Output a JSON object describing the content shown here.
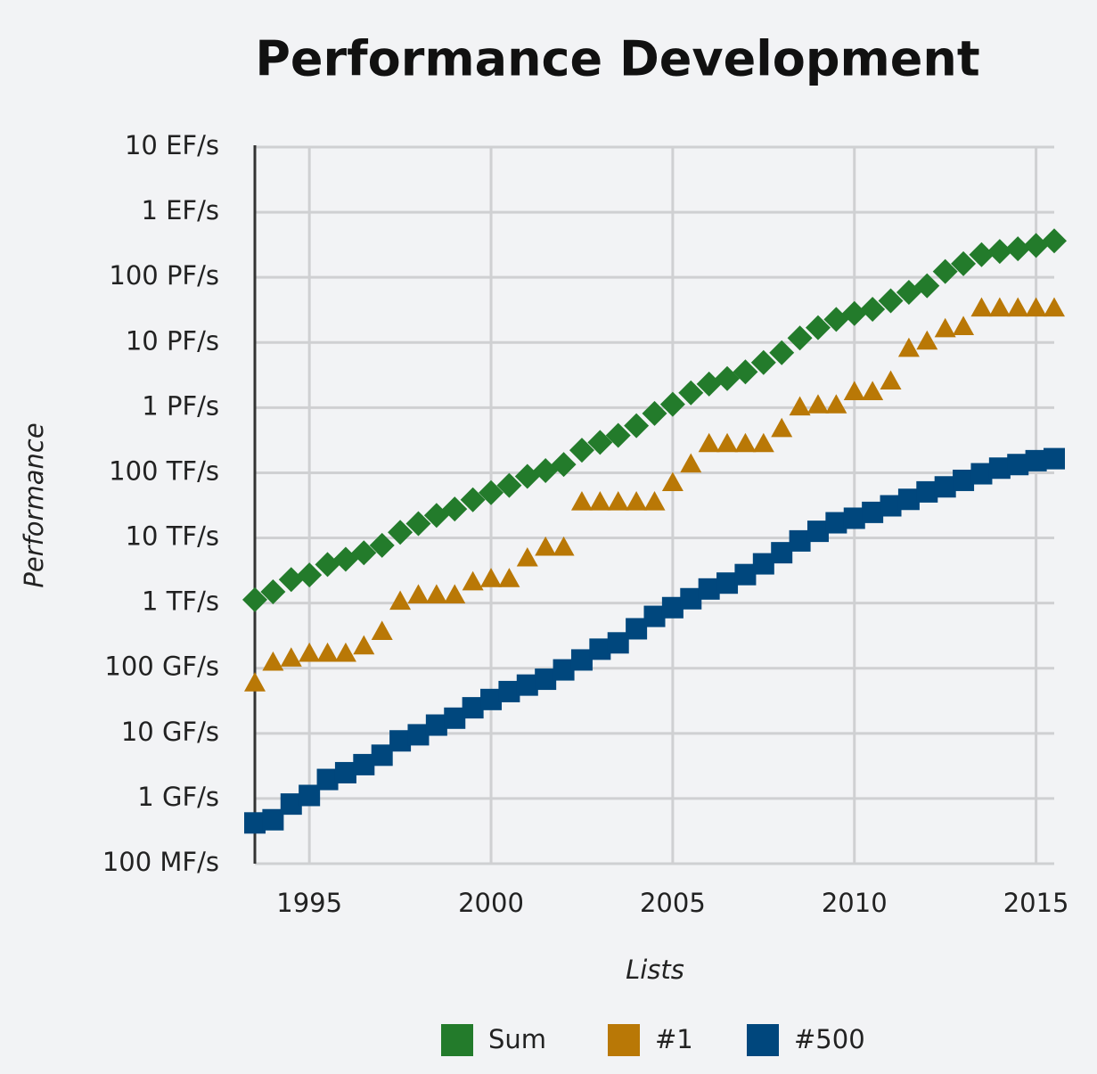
{
  "chart_data": {
    "type": "scatter",
    "title": "Performance Development",
    "x_label": "Lists",
    "y_label": "Performance",
    "log_y": true,
    "grid": true,
    "legend": "bottom",
    "x": [
      1993.5,
      1994,
      1994.5,
      1995,
      1995.5,
      1996,
      1996.5,
      1997,
      1997.5,
      1998,
      1998.5,
      1999,
      1999.5,
      2000,
      2000.5,
      2001,
      2001.5,
      2002,
      2002.5,
      2003,
      2003.5,
      2004,
      2004.5,
      2005,
      2005.5,
      2006,
      2006.5,
      2007,
      2007.5,
      2008,
      2008.5,
      2009,
      2009.5,
      2010,
      2010.5,
      2011,
      2011.5,
      2012,
      2012.5,
      2013,
      2013.5,
      2014,
      2014.5,
      2015,
      2015.5
    ],
    "xlim": [
      1993.5,
      2015.5
    ],
    "xticks": [
      1995,
      2000,
      2005,
      2010,
      2015
    ],
    "ylim": [
      0.1,
      10000000000
    ],
    "yticks": [
      {
        "value": 0.1,
        "label": "100 MF/s"
      },
      {
        "value": 1,
        "label": "1 GF/s"
      },
      {
        "value": 10,
        "label": "10 GF/s"
      },
      {
        "value": 100,
        "label": "100 GF/s"
      },
      {
        "value": 1000,
        "label": "1 TF/s"
      },
      {
        "value": 10000,
        "label": "10 TF/s"
      },
      {
        "value": 100000,
        "label": "100 TF/s"
      },
      {
        "value": 1000000,
        "label": "1 PF/s"
      },
      {
        "value": 10000000,
        "label": "10 PF/s"
      },
      {
        "value": 100000000,
        "label": "100 PF/s"
      },
      {
        "value": 1000000000,
        "label": "1 EF/s"
      },
      {
        "value": 10000000000,
        "label": "10 EF/s"
      }
    ],
    "series": [
      {
        "name": "Sum",
        "color": "#237b2b",
        "marker": "diamond",
        "values": [
          1128,
          1490,
          2300,
          2700,
          3900,
          4700,
          5900,
          7700,
          12200,
          16600,
          22200,
          27800,
          38500,
          49500,
          64000,
          88000,
          108000,
          134000,
          222000,
          293000,
          375000,
          528000,
          813000,
          1127000,
          1690000,
          2300000,
          2790000,
          3540000,
          4920000,
          6970000,
          11700000,
          16900000,
          22600000,
          27900000,
          32400000,
          43700000,
          58900000,
          74200000,
          123000000,
          162000000,
          223000000,
          250000000,
          274000000,
          309000000,
          363000000
        ]
      },
      {
        "name": "#1",
        "color": "#b97806",
        "marker": "triangle",
        "values": [
          59.7,
          124,
          143.4,
          170,
          170,
          170,
          220.4,
          368.2,
          1068,
          1338,
          1338,
          1338,
          2121,
          2379,
          2379,
          4938,
          7226,
          7226,
          35860,
          35860,
          35860,
          35860,
          35860,
          70720,
          136800,
          280600,
          280600,
          280600,
          280600,
          478200,
          1026000,
          1105000,
          1105000,
          1759000,
          1759000,
          2566000,
          8162000,
          10510000,
          16320000,
          17590000,
          33860000,
          33860000,
          33860000,
          33860000,
          33860000
        ]
      },
      {
        "name": "#500",
        "color": "#00477d",
        "marker": "square",
        "values": [
          0.422,
          0.472,
          0.822,
          1.114,
          1.96,
          2.49,
          3.31,
          4.62,
          7.67,
          9.51,
          13.4,
          17.1,
          24.7,
          33.1,
          43.8,
          55.1,
          67.8,
          94.3,
          134,
          196,
          245,
          403,
          625,
          851,
          1166,
          1646,
          2026,
          2737,
          4005,
          5929,
          9000,
          12640,
          17090,
          20050,
          24670,
          31120,
          39100,
          50900,
          60800,
          76500,
          96600,
          117800,
          133700,
          153400,
          164700
        ]
      }
    ]
  }
}
